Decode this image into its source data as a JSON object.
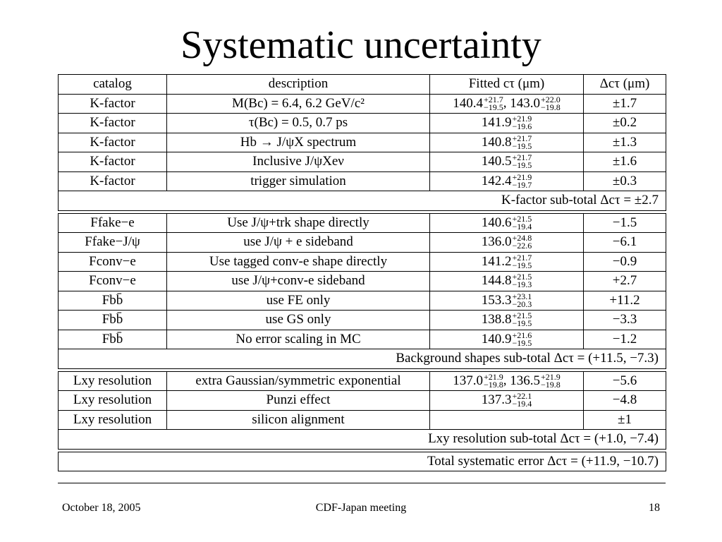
{
  "title": "Systematic uncertainty",
  "table": {
    "headers": [
      "catalog",
      "description",
      "Fitted cτ (μm)",
      "Δcτ (μm)"
    ],
    "sections": [
      {
        "rows": [
          {
            "catalog": "K-factor",
            "description": "M(Bc) = 6.4, 6.2 GeV/c²",
            "fitted": [
              {
                "v": "140.4",
                "up": "+21.7",
                "dn": "−19.5"
              },
              {
                "v": "143.0",
                "up": "+22.0",
                "dn": "−19.8"
              }
            ],
            "delta": "±1.7"
          },
          {
            "catalog": "K-factor",
            "description": "τ(Bc) = 0.5, 0.7 ps",
            "fitted": [
              {
                "v": "141.9",
                "up": "+21.9",
                "dn": "−19.6"
              }
            ],
            "delta": "±0.2"
          },
          {
            "catalog": "K-factor",
            "description": "Hb → J/ψX spectrum",
            "fitted": [
              {
                "v": "140.8",
                "up": "+21.7",
                "dn": "−19.5"
              }
            ],
            "delta": "±1.3"
          },
          {
            "catalog": "K-factor",
            "description": "Inclusive J/ψXeν",
            "fitted": [
              {
                "v": "140.5",
                "up": "+21.7",
                "dn": "−19.5"
              }
            ],
            "delta": "±1.6"
          },
          {
            "catalog": "K-factor",
            "description": "trigger simulation",
            "fitted": [
              {
                "v": "142.4",
                "up": "+21.9",
                "dn": "−19.7"
              }
            ],
            "delta": "±0.3"
          }
        ],
        "subtotal": "K-factor sub-total Δcτ = ±2.7"
      },
      {
        "rows": [
          {
            "catalog": "Ffake−e",
            "description": "Use J/ψ+trk shape directly",
            "fitted": [
              {
                "v": "140.6",
                "up": "+21.5",
                "dn": "−19.4"
              }
            ],
            "delta": "−1.5"
          },
          {
            "catalog": "Ffake−J/ψ",
            "description": "use J/ψ + e sideband",
            "fitted": [
              {
                "v": "136.0",
                "up": "+24.8",
                "dn": "−22.6"
              }
            ],
            "delta": "−6.1"
          },
          {
            "catalog": "Fconv−e",
            "description": "Use tagged conv-e shape directly",
            "fitted": [
              {
                "v": "141.2",
                "up": "+21.7",
                "dn": "−19.5"
              }
            ],
            "delta": "−0.9"
          },
          {
            "catalog": "Fconv−e",
            "description": "use J/ψ+conv-e sideband",
            "fitted": [
              {
                "v": "144.8",
                "up": "+21.5",
                "dn": "−19.3"
              }
            ],
            "delta": "+2.7"
          },
          {
            "catalog": "Fbb̄",
            "description": "use FE only",
            "fitted": [
              {
                "v": "153.3",
                "up": "+23.1",
                "dn": "−20.3"
              }
            ],
            "delta": "+11.2"
          },
          {
            "catalog": "Fbb̄",
            "description": "use GS only",
            "fitted": [
              {
                "v": "138.8",
                "up": "+21.5",
                "dn": "−19.5"
              }
            ],
            "delta": "−3.3"
          },
          {
            "catalog": "Fbb̄",
            "description": "No error scaling in MC",
            "fitted": [
              {
                "v": "140.9",
                "up": "+21.6",
                "dn": "−19.5"
              }
            ],
            "delta": "−1.2"
          }
        ],
        "subtotal": "Background shapes sub-total Δcτ = (+11.5, −7.3)"
      },
      {
        "rows": [
          {
            "catalog": "Lxy resolution",
            "description": "extra Gaussian/symmetric exponential",
            "fitted": [
              {
                "v": "137.0",
                "up": "+21.9",
                "dn": "−19.8"
              },
              {
                "v": "136.5",
                "up": "+21.9",
                "dn": "−19.8"
              }
            ],
            "delta": "−5.6"
          },
          {
            "catalog": "Lxy resolution",
            "description": "Punzi effect",
            "fitted": [
              {
                "v": "137.3",
                "up": "+22.1",
                "dn": "−19.4"
              }
            ],
            "delta": "−4.8"
          },
          {
            "catalog": "Lxy resolution",
            "description": "silicon alignment",
            "fitted": [],
            "delta": "±1"
          }
        ],
        "subtotal": "Lxy resolution sub-total Δcτ = (+1.0, −7.4)"
      },
      {
        "rows": [],
        "subtotal": "Total systematic error Δcτ = (+11.9, −10.7)"
      }
    ]
  },
  "footer": {
    "date": "October 18, 2005",
    "meeting": "CDF-Japan meeting",
    "page": "18"
  }
}
